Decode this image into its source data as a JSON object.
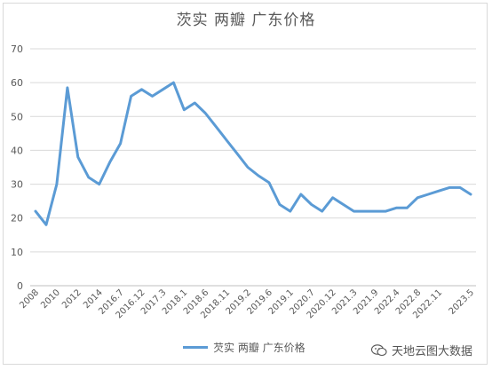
{
  "chart_data": {
    "type": "line",
    "title": "茨实 两瓣 广东价格",
    "xlabel": "",
    "ylabel": "",
    "ylim": [
      0,
      70
    ],
    "yticks": [
      0,
      10,
      20,
      30,
      40,
      50,
      60,
      70
    ],
    "grid": true,
    "legend_position": "bottom",
    "series": [
      {
        "name": "芡实 两瓣 广东价格",
        "color": "#5b9bd5",
        "values": [
          22,
          18,
          30,
          58.5,
          38,
          32,
          30,
          36.5,
          42,
          56,
          58,
          56,
          58,
          60,
          52,
          54,
          51,
          47,
          43,
          39,
          35,
          32.5,
          30.5,
          24,
          22,
          27,
          24,
          22,
          26,
          24,
          22,
          22,
          22,
          22,
          23,
          23,
          26,
          27,
          28,
          29,
          29,
          27
        ]
      }
    ],
    "x_tick_labels": [
      "2008",
      "2010",
      "2012",
      "2014",
      "2016.7",
      "2016.12",
      "2017.3",
      "2018.1",
      "2018.6",
      "2018.11",
      "2019.2",
      "2019.6",
      "2019.1",
      "2020.7",
      "2020.12",
      "2021.3",
      "2021.9",
      "2022.4",
      "2022.8",
      "2022.11",
      "2023.5"
    ],
    "x_tick_positions": [
      0,
      2,
      4,
      6,
      8,
      10,
      12,
      14,
      16,
      18,
      20,
      22,
      24,
      26,
      28,
      30,
      32,
      34,
      36,
      38,
      41
    ]
  },
  "watermark": {
    "text": "天地云图大数据",
    "icon": "wechat-icon"
  }
}
